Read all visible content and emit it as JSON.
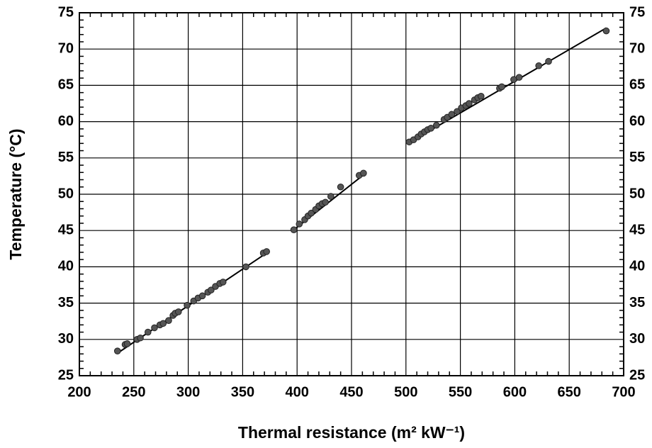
{
  "chart_data": {
    "type": "scatter",
    "xlabel": "Thermal resistance (m² kW⁻¹)",
    "ylabel": "Temperature (°C)",
    "x": [
      235,
      242,
      244,
      253,
      256,
      263,
      269,
      274,
      277,
      282,
      286,
      288,
      291,
      299,
      305,
      309,
      313,
      318,
      321,
      325,
      329,
      332,
      353,
      369,
      372,
      397,
      402,
      407,
      410,
      413,
      417,
      420,
      423,
      426,
      431,
      440,
      457,
      461,
      503,
      507,
      511,
      514,
      517,
      520,
      523,
      528,
      535,
      538,
      542,
      547,
      551,
      555,
      558,
      563,
      566,
      569,
      586,
      588,
      599,
      604,
      622,
      631,
      684
    ],
    "values": [
      28.4,
      29.3,
      29.4,
      30.0,
      30.2,
      31.0,
      31.6,
      32.0,
      32.2,
      32.6,
      33.3,
      33.6,
      33.8,
      34.7,
      35.3,
      35.7,
      36.0,
      36.5,
      36.8,
      37.3,
      37.7,
      37.9,
      40.0,
      41.9,
      42.1,
      45.1,
      45.9,
      46.5,
      47.0,
      47.4,
      47.9,
      48.4,
      48.7,
      48.9,
      49.7,
      51.0,
      52.6,
      52.9,
      57.2,
      57.5,
      57.9,
      58.3,
      58.6,
      58.9,
      59.1,
      59.5,
      60.3,
      60.6,
      61.0,
      61.4,
      61.9,
      62.2,
      62.5,
      63.0,
      63.3,
      63.5,
      64.6,
      64.8,
      65.8,
      66.1,
      67.7,
      68.3,
      72.5
    ],
    "color": "#555555",
    "fit_lines": [
      {
        "x": [
          235,
          372
        ],
        "values": [
          28.1,
          41.9
        ]
      },
      {
        "x": [
          397,
          463
        ],
        "values": [
          45.1,
          52.9
        ]
      },
      {
        "x": [
          503,
          684
        ],
        "values": [
          57.1,
          72.9
        ]
      }
    ],
    "line_color": "#000000",
    "xlim": [
      200,
      700
    ],
    "xticks": [
      200,
      250,
      300,
      350,
      400,
      450,
      500,
      550,
      600,
      650,
      700
    ],
    "ylim": [
      25,
      75
    ],
    "yticks": [
      25,
      30,
      35,
      40,
      45,
      50,
      55,
      60,
      65,
      70,
      75
    ],
    "grid": true,
    "minor_ticks": true,
    "right_axis_labels": true
  }
}
